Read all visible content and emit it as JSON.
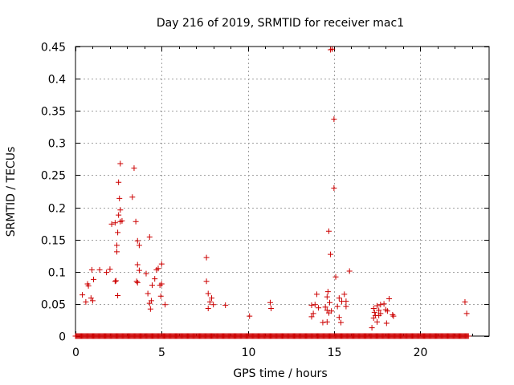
{
  "chart_data": {
    "type": "scatter",
    "title": "Day 216 of 2019, SRMTID for receiver mac1",
    "xlabel": "GPS time / hours",
    "ylabel": "SRMTID / TECUs",
    "xlim": [
      0,
      24
    ],
    "ylim": [
      0,
      0.45
    ],
    "x_ticks": [
      0,
      5,
      10,
      15,
      20
    ],
    "x_tick_labels": [
      "0",
      "5",
      "10",
      "15",
      "20"
    ],
    "y_ticks": [
      0,
      0.05,
      0.1,
      0.15,
      0.2,
      0.25,
      0.3,
      0.35,
      0.4,
      0.45
    ],
    "y_tick_labels": [
      "0",
      "0.05",
      "0.1",
      "0.15",
      "0.2",
      "0.25",
      "0.3",
      "0.35",
      "0.4",
      "0.45"
    ],
    "grid": true,
    "marker": "plus",
    "series_color": "#cc0000",
    "baseline": {
      "y": 0,
      "x_start": 0.0,
      "x_end": 22.8,
      "step": 0.05
    },
    "points": [
      [
        0.4,
        0.064
      ],
      [
        0.6,
        0.053
      ],
      [
        0.7,
        0.081
      ],
      [
        0.75,
        0.078
      ],
      [
        0.9,
        0.059
      ],
      [
        0.95,
        0.103
      ],
      [
        1.0,
        0.055
      ],
      [
        1.05,
        0.088
      ],
      [
        1.4,
        0.103
      ],
      [
        1.8,
        0.099
      ],
      [
        2.0,
        0.104
      ],
      [
        2.1,
        0.174
      ],
      [
        2.3,
        0.176
      ],
      [
        2.3,
        0.085
      ],
      [
        2.35,
        0.086
      ],
      [
        2.4,
        0.141
      ],
      [
        2.4,
        0.131
      ],
      [
        2.45,
        0.161
      ],
      [
        2.45,
        0.063
      ],
      [
        2.5,
        0.188
      ],
      [
        2.5,
        0.239
      ],
      [
        2.55,
        0.214
      ],
      [
        2.6,
        0.196
      ],
      [
        2.6,
        0.178
      ],
      [
        2.6,
        0.268
      ],
      [
        2.7,
        0.179
      ],
      [
        3.3,
        0.216
      ],
      [
        3.4,
        0.261
      ],
      [
        3.5,
        0.178
      ],
      [
        3.55,
        0.085
      ],
      [
        3.6,
        0.111
      ],
      [
        3.6,
        0.148
      ],
      [
        3.7,
        0.141
      ],
      [
        3.7,
        0.102
      ],
      [
        3.6,
        0.083
      ],
      [
        4.1,
        0.097
      ],
      [
        4.2,
        0.066
      ],
      [
        4.3,
        0.154
      ],
      [
        4.3,
        0.051
      ],
      [
        4.35,
        0.042
      ],
      [
        4.4,
        0.055
      ],
      [
        4.45,
        0.079
      ],
      [
        4.6,
        0.089
      ],
      [
        4.7,
        0.103
      ],
      [
        4.8,
        0.105
      ],
      [
        4.9,
        0.079
      ],
      [
        4.95,
        0.062
      ],
      [
        5.0,
        0.112
      ],
      [
        5.0,
        0.081
      ],
      [
        5.2,
        0.049
      ],
      [
        7.6,
        0.122
      ],
      [
        7.6,
        0.085
      ],
      [
        7.7,
        0.066
      ],
      [
        7.7,
        0.043
      ],
      [
        7.8,
        0.053
      ],
      [
        7.9,
        0.059
      ],
      [
        8.0,
        0.049
      ],
      [
        8.7,
        0.048
      ],
      [
        10.1,
        0.031
      ],
      [
        11.3,
        0.052
      ],
      [
        11.35,
        0.043
      ],
      [
        13.7,
        0.048
      ],
      [
        13.7,
        0.03
      ],
      [
        13.8,
        0.035
      ],
      [
        13.9,
        0.049
      ],
      [
        14.0,
        0.065
      ],
      [
        14.1,
        0.044
      ],
      [
        14.35,
        0.021
      ],
      [
        14.5,
        0.045
      ],
      [
        14.6,
        0.061
      ],
      [
        14.6,
        0.022
      ],
      [
        14.6,
        0.04
      ],
      [
        14.65,
        0.069
      ],
      [
        14.7,
        0.036
      ],
      [
        14.7,
        0.163
      ],
      [
        14.75,
        0.052
      ],
      [
        14.8,
        0.127
      ],
      [
        14.8,
        0.445
      ],
      [
        14.85,
        0.039
      ],
      [
        14.9,
        0.446
      ],
      [
        15.0,
        0.337
      ],
      [
        15.0,
        0.23
      ],
      [
        15.1,
        0.092
      ],
      [
        15.2,
        0.046
      ],
      [
        15.3,
        0.059
      ],
      [
        15.3,
        0.029
      ],
      [
        15.4,
        0.021
      ],
      [
        15.45,
        0.054
      ],
      [
        15.6,
        0.065
      ],
      [
        15.7,
        0.054
      ],
      [
        15.7,
        0.046
      ],
      [
        15.9,
        0.101
      ],
      [
        17.2,
        0.013
      ],
      [
        17.3,
        0.043
      ],
      [
        17.3,
        0.028
      ],
      [
        17.35,
        0.037
      ],
      [
        17.4,
        0.032
      ],
      [
        17.5,
        0.047
      ],
      [
        17.5,
        0.022
      ],
      [
        17.6,
        0.04
      ],
      [
        17.6,
        0.032
      ],
      [
        17.7,
        0.049
      ],
      [
        17.7,
        0.035
      ],
      [
        17.9,
        0.05
      ],
      [
        18.0,
        0.041
      ],
      [
        18.05,
        0.02
      ],
      [
        18.1,
        0.039
      ],
      [
        18.2,
        0.058
      ],
      [
        18.4,
        0.033
      ],
      [
        18.45,
        0.031
      ],
      [
        22.6,
        0.053
      ],
      [
        22.7,
        0.035
      ]
    ]
  }
}
